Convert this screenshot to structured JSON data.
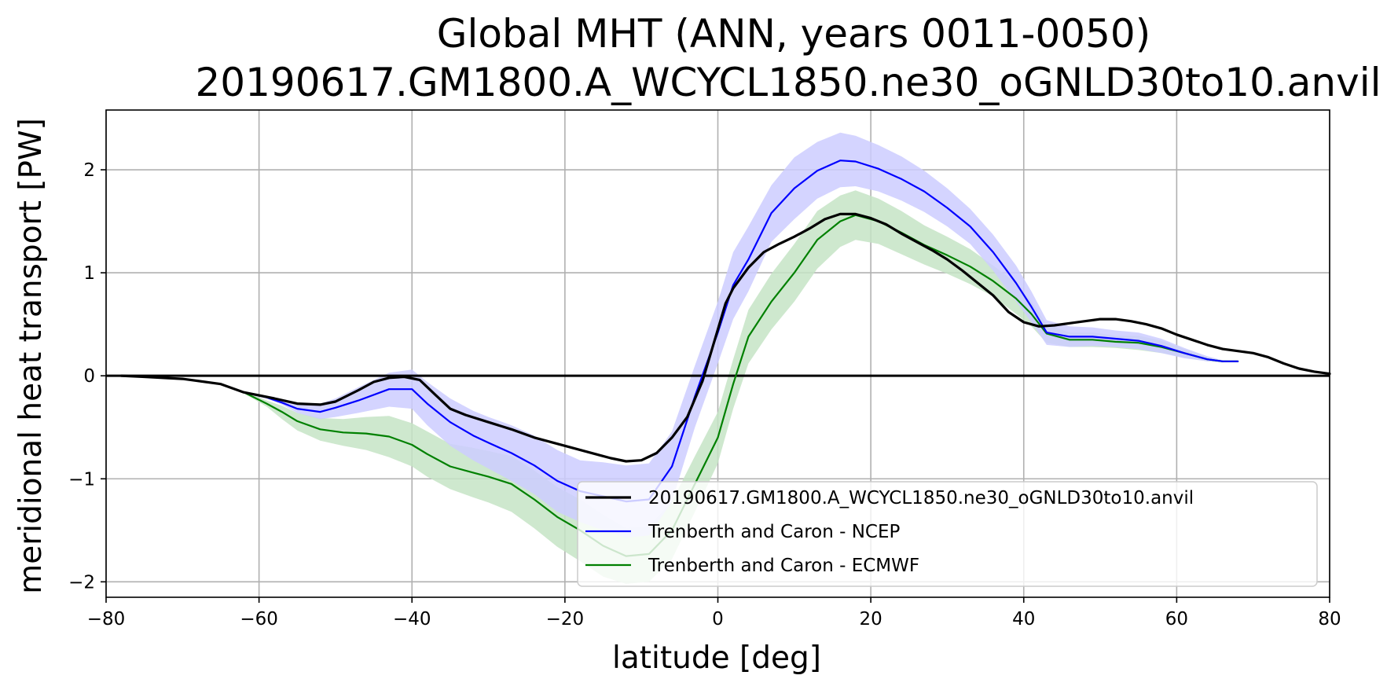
{
  "chart_data": {
    "type": "line",
    "title_line1": "Global MHT (ANN, years 0011-0050)",
    "title_line2": "20190617.GM1800.A_WCYCL1850.ne30_oGNLD30to10.anvil",
    "xlabel": "latitude [deg]",
    "ylabel": "meridional heat transport [PW]",
    "xlim": [
      -80,
      80
    ],
    "ylim": [
      -2.15,
      2.58
    ],
    "xticks": [
      -80,
      -60,
      -40,
      -20,
      0,
      20,
      40,
      60,
      80
    ],
    "xtick_labels": [
      "−80",
      "−60",
      "−40",
      "−20",
      "0",
      "20",
      "40",
      "60",
      "80"
    ],
    "yticks": [
      -2,
      -1,
      0,
      1,
      2
    ],
    "ytick_labels": [
      "−2",
      "−1",
      "0",
      "1",
      "2"
    ],
    "grid": true,
    "zero_line": true,
    "legend_location": "lower right",
    "series": [
      {
        "name": "20190617.GM1800.A_WCYCL1850.ne30_oGNLD30to10.anvil",
        "color": "#000000",
        "x": [
          -78,
          -75,
          -70,
          -65,
          -62,
          -58,
          -55,
          -52,
          -50,
          -47,
          -45,
          -43,
          -41,
          -39,
          -37,
          -35,
          -33,
          -30,
          -27,
          -24,
          -20,
          -17,
          -14,
          -12,
          -10,
          -8,
          -6,
          -4,
          -2,
          0,
          1,
          2,
          4,
          6,
          8,
          10,
          12,
          14,
          16,
          18,
          20,
          22,
          24,
          26,
          28,
          30,
          32,
          34,
          36,
          38,
          40,
          42,
          44,
          46,
          48,
          50,
          52,
          54,
          56,
          58,
          60,
          62,
          64,
          66,
          68,
          70,
          72,
          74,
          76,
          78,
          80
        ],
        "y": [
          0,
          -0.01,
          -0.03,
          -0.08,
          -0.16,
          -0.22,
          -0.27,
          -0.28,
          -0.25,
          -0.14,
          -0.06,
          -0.02,
          -0.01,
          -0.04,
          -0.18,
          -0.32,
          -0.38,
          -0.45,
          -0.52,
          -0.6,
          -0.68,
          -0.74,
          -0.8,
          -0.83,
          -0.82,
          -0.75,
          -0.6,
          -0.4,
          -0.05,
          0.45,
          0.7,
          0.85,
          1.05,
          1.2,
          1.28,
          1.35,
          1.43,
          1.52,
          1.57,
          1.57,
          1.53,
          1.47,
          1.38,
          1.3,
          1.22,
          1.13,
          1.02,
          0.9,
          0.78,
          0.62,
          0.52,
          0.48,
          0.49,
          0.51,
          0.53,
          0.55,
          0.55,
          0.53,
          0.5,
          0.46,
          0.4,
          0.35,
          0.3,
          0.26,
          0.24,
          0.22,
          0.18,
          0.12,
          0.07,
          0.04,
          0.02
        ],
        "band": null
      },
      {
        "name": "Trenberth and Caron - NCEP",
        "color": "#0000ff",
        "band_color": "#ccccff",
        "x": [
          -65,
          -62,
          -59,
          -57,
          -55,
          -52,
          -50,
          -47,
          -43,
          -40,
          -38,
          -35,
          -32,
          -30,
          -27,
          -24,
          -21,
          -18,
          -15,
          -12,
          -9,
          -6,
          -3,
          0,
          2,
          4,
          7,
          10,
          13,
          16,
          18,
          21,
          24,
          27,
          30,
          33,
          36,
          39,
          41,
          43,
          46,
          49,
          52,
          55,
          58,
          61,
          64,
          66,
          68
        ],
        "y": [
          -0.08,
          -0.16,
          -0.21,
          -0.26,
          -0.32,
          -0.35,
          -0.31,
          -0.24,
          -0.13,
          -0.13,
          -0.27,
          -0.45,
          -0.58,
          -0.65,
          -0.75,
          -0.87,
          -1.02,
          -1.12,
          -1.17,
          -1.22,
          -1.2,
          -0.88,
          -0.2,
          0.42,
          0.88,
          1.13,
          1.58,
          1.82,
          1.99,
          2.09,
          2.08,
          2.01,
          1.91,
          1.79,
          1.63,
          1.45,
          1.2,
          0.9,
          0.67,
          0.42,
          0.38,
          0.38,
          0.36,
          0.34,
          0.29,
          0.22,
          0.16,
          0.14,
          0.14
        ],
        "band_lower": [
          -0.08,
          -0.16,
          -0.22,
          -0.28,
          -0.36,
          -0.42,
          -0.4,
          -0.36,
          -0.3,
          -0.32,
          -0.48,
          -0.68,
          -0.82,
          -0.9,
          -1.02,
          -1.15,
          -1.32,
          -1.42,
          -1.5,
          -1.57,
          -1.55,
          -1.22,
          -0.5,
          0.12,
          0.55,
          0.82,
          1.3,
          1.52,
          1.72,
          1.83,
          1.84,
          1.79,
          1.7,
          1.59,
          1.45,
          1.28,
          1.02,
          0.72,
          0.52,
          0.3,
          0.28,
          0.29,
          0.28,
          0.26,
          0.22,
          0.17,
          0.14,
          0.14,
          0.14
        ],
        "band_upper": [
          -0.08,
          -0.16,
          -0.2,
          -0.24,
          -0.27,
          -0.27,
          -0.22,
          -0.11,
          0.03,
          0.06,
          -0.06,
          -0.22,
          -0.34,
          -0.4,
          -0.48,
          -0.58,
          -0.72,
          -0.82,
          -0.84,
          -0.87,
          -0.85,
          -0.54,
          0.1,
          0.72,
          1.2,
          1.45,
          1.85,
          2.12,
          2.27,
          2.36,
          2.33,
          2.24,
          2.13,
          1.99,
          1.82,
          1.62,
          1.37,
          1.07,
          0.82,
          0.54,
          0.48,
          0.47,
          0.44,
          0.42,
          0.36,
          0.27,
          0.19,
          0.15,
          0.14
        ]
      },
      {
        "name": "Trenberth and Caron - ECMWF",
        "color": "#008000",
        "band_color": "#c6e4c6",
        "x": [
          -65,
          -62,
          -59,
          -57,
          -55,
          -52,
          -49,
          -46,
          -43,
          -40,
          -38,
          -35,
          -32,
          -30,
          -27,
          -24,
          -21,
          -18,
          -15,
          -12,
          -9,
          -6,
          -3,
          0,
          2,
          4,
          7,
          10,
          13,
          16,
          18,
          21,
          24,
          27,
          30,
          33,
          36,
          39,
          41,
          43,
          46,
          49,
          52,
          55,
          58,
          61,
          64,
          66,
          68
        ],
        "y": [
          -0.08,
          -0.16,
          -0.27,
          -0.35,
          -0.44,
          -0.52,
          -0.55,
          -0.56,
          -0.59,
          -0.67,
          -0.76,
          -0.88,
          -0.94,
          -0.98,
          -1.05,
          -1.2,
          -1.37,
          -1.5,
          -1.65,
          -1.75,
          -1.73,
          -1.5,
          -1.05,
          -0.6,
          -0.08,
          0.38,
          0.72,
          1.0,
          1.32,
          1.5,
          1.56,
          1.5,
          1.39,
          1.27,
          1.17,
          1.06,
          0.92,
          0.75,
          0.6,
          0.41,
          0.35,
          0.35,
          0.33,
          0.32,
          0.28,
          0.22,
          0.16,
          0.14,
          0.14
        ],
        "band_lower": [
          -0.08,
          -0.17,
          -0.3,
          -0.42,
          -0.53,
          -0.63,
          -0.68,
          -0.72,
          -0.79,
          -0.88,
          -0.98,
          -1.1,
          -1.18,
          -1.23,
          -1.32,
          -1.48,
          -1.66,
          -1.8,
          -1.95,
          -2.02,
          -2.0,
          -1.78,
          -1.32,
          -0.85,
          -0.32,
          0.12,
          0.45,
          0.72,
          1.04,
          1.25,
          1.32,
          1.28,
          1.18,
          1.08,
          0.99,
          0.89,
          0.77,
          0.6,
          0.48,
          0.32,
          0.28,
          0.28,
          0.27,
          0.25,
          0.22,
          0.18,
          0.14,
          0.13,
          0.14
        ],
        "band_upper": [
          -0.08,
          -0.15,
          -0.24,
          -0.29,
          -0.36,
          -0.41,
          -0.42,
          -0.4,
          -0.39,
          -0.46,
          -0.54,
          -0.66,
          -0.7,
          -0.73,
          -0.78,
          -0.92,
          -1.08,
          -1.2,
          -1.35,
          -1.48,
          -1.46,
          -1.22,
          -0.78,
          -0.35,
          0.16,
          0.64,
          0.99,
          1.28,
          1.6,
          1.75,
          1.8,
          1.72,
          1.6,
          1.46,
          1.35,
          1.23,
          1.07,
          0.9,
          0.72,
          0.5,
          0.42,
          0.42,
          0.39,
          0.39,
          0.34,
          0.26,
          0.18,
          0.15,
          0.14
        ]
      }
    ]
  }
}
